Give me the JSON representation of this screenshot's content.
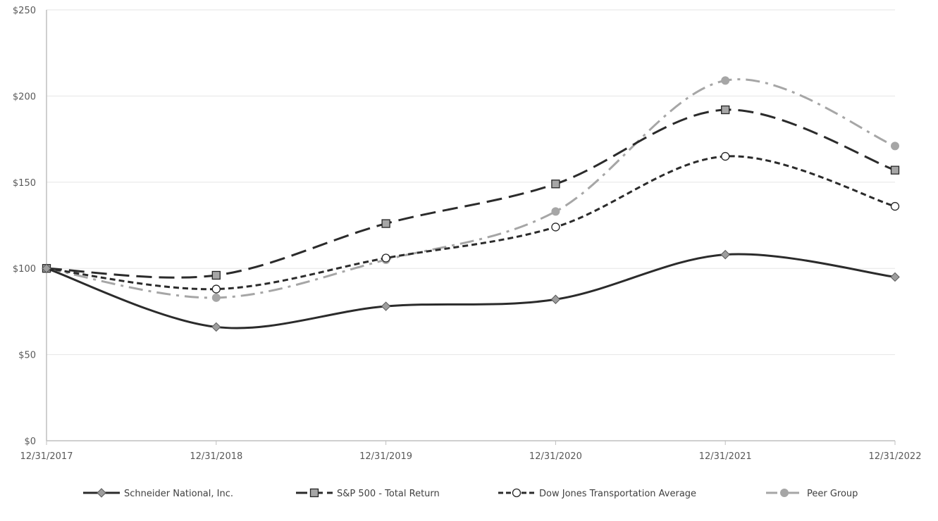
{
  "chart_data": {
    "type": "line",
    "title": "",
    "xlabel": "",
    "ylabel": "",
    "categories": [
      "12/31/2017",
      "12/31/2018",
      "12/31/2019",
      "12/31/2020",
      "12/31/2021",
      "12/31/2022"
    ],
    "ylim": [
      0,
      250
    ],
    "yticks": [
      0,
      50,
      100,
      150,
      200,
      250
    ],
    "ytick_labels": [
      "$0",
      "$50",
      "$100",
      "$150",
      "$200",
      "$250"
    ],
    "grid": "horizontal",
    "legend_position": "bottom",
    "series": [
      {
        "name": "Schneider National, Inc.",
        "values": [
          100,
          66,
          78,
          82,
          108,
          95
        ],
        "color": "#2b2b2b",
        "marker": "diamond",
        "line": "solid"
      },
      {
        "name": "S&P 500 - Total Return",
        "values": [
          100,
          96,
          126,
          149,
          192,
          157
        ],
        "color": "#2b2b2b",
        "marker": "square",
        "line": "long-dash"
      },
      {
        "name": "Dow Jones Transportation Average",
        "values": [
          100,
          88,
          106,
          124,
          165,
          136
        ],
        "color": "#2b2b2b",
        "marker": "open-circle",
        "line": "short-dash"
      },
      {
        "name": "Peer Group",
        "values": [
          100,
          83,
          105,
          133,
          209,
          171
        ],
        "color": "#a6a6a6",
        "marker": "filled-circle",
        "line": "dash-dot"
      }
    ]
  }
}
